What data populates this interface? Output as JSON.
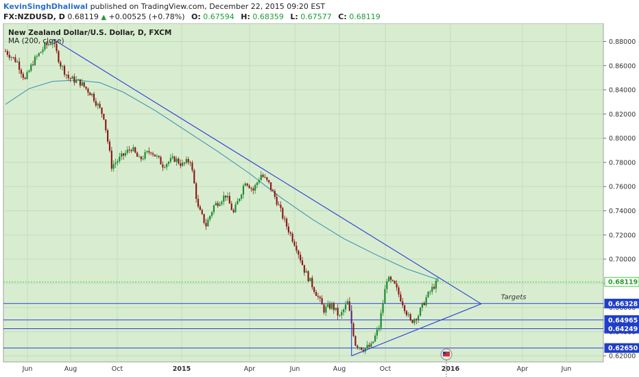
{
  "header": {
    "author": "KevinSinghDhaliwal",
    "published": " published on TradingView.com, December 22, 2015 09:20 EST",
    "symbol": "FX:NZDUSD, D",
    "last": "0.68119",
    "change": "+0.00525 (+0.78%)",
    "open_label": "O:",
    "open": "0.67594",
    "high_label": "H:",
    "high": "0.68359",
    "low_label": "L:",
    "low": "0.67577",
    "close_label": "C:",
    "close": "0.68119"
  },
  "legend": {
    "title": "New Zealand Dollar/U.S. Dollar, D, FXCM",
    "indicator": "MA (200, close)"
  },
  "colors": {
    "background": "#d8edd0",
    "axis_bg": "#ffffff",
    "up": "#1e8a2e",
    "down": "#8b1a1a",
    "trendline": "#2b3fd6",
    "ma": "#4a9bb5",
    "price_line": "#3ecf3e",
    "label_fill": "#1f3fc8"
  },
  "chart_data": {
    "type": "candlestick",
    "title": "New Zealand Dollar/U.S. Dollar, D, FXCM",
    "ylim": [
      0.615,
      0.895
    ],
    "y_ticks": [
      "0.88000",
      "0.86000",
      "0.84000",
      "0.82000",
      "0.80000",
      "0.78000",
      "0.76000",
      "0.74000",
      "0.72000",
      "0.70000",
      "0.68000",
      "0.66000",
      "0.64000",
      "0.62000"
    ],
    "x_ticks": [
      "Jun",
      "Aug",
      "Oct",
      "2015",
      "Apr",
      "Jun",
      "Aug",
      "Oct",
      "2016",
      "Apr",
      "Jun"
    ],
    "bold_x_ticks": [
      "2015",
      "2016"
    ],
    "grid": true,
    "price_path": [
      {
        "t": 0,
        "p": 0.872
      },
      {
        "t": 3,
        "p": 0.863
      },
      {
        "t": 5,
        "p": 0.848
      },
      {
        "t": 7,
        "p": 0.863
      },
      {
        "t": 10,
        "p": 0.876
      },
      {
        "t": 12,
        "p": 0.88
      },
      {
        "t": 14,
        "p": 0.861
      },
      {
        "t": 16,
        "p": 0.85
      },
      {
        "t": 19,
        "p": 0.846
      },
      {
        "t": 22,
        "p": 0.836
      },
      {
        "t": 25,
        "p": 0.818
      },
      {
        "t": 27,
        "p": 0.777
      },
      {
        "t": 29,
        "p": 0.783
      },
      {
        "t": 32,
        "p": 0.792
      },
      {
        "t": 34,
        "p": 0.782
      },
      {
        "t": 37,
        "p": 0.79
      },
      {
        "t": 40,
        "p": 0.778
      },
      {
        "t": 43,
        "p": 0.783
      },
      {
        "t": 45,
        "p": 0.778
      },
      {
        "t": 47,
        "p": 0.782
      },
      {
        "t": 49,
        "p": 0.742
      },
      {
        "t": 51,
        "p": 0.728
      },
      {
        "t": 53,
        "p": 0.744
      },
      {
        "t": 56,
        "p": 0.753
      },
      {
        "t": 58,
        "p": 0.738
      },
      {
        "t": 61,
        "p": 0.765
      },
      {
        "t": 63,
        "p": 0.757
      },
      {
        "t": 65,
        "p": 0.77
      },
      {
        "t": 67,
        "p": 0.762
      },
      {
        "t": 69,
        "p": 0.748
      },
      {
        "t": 71,
        "p": 0.731
      },
      {
        "t": 74,
        "p": 0.71
      },
      {
        "t": 76,
        "p": 0.691
      },
      {
        "t": 79,
        "p": 0.672
      },
      {
        "t": 81,
        "p": 0.658
      },
      {
        "t": 83,
        "p": 0.662
      },
      {
        "t": 85,
        "p": 0.652
      },
      {
        "t": 87,
        "p": 0.664
      },
      {
        "t": 89,
        "p": 0.63
      },
      {
        "t": 91,
        "p": 0.626
      },
      {
        "t": 93,
        "p": 0.628
      },
      {
        "t": 95,
        "p": 0.644
      },
      {
        "t": 97,
        "p": 0.684
      },
      {
        "t": 99,
        "p": 0.678
      },
      {
        "t": 101,
        "p": 0.664
      },
      {
        "t": 103,
        "p": 0.648
      },
      {
        "t": 105,
        "p": 0.654
      },
      {
        "t": 107,
        "p": 0.668
      },
      {
        "t": 109,
        "p": 0.678
      },
      {
        "t": 110,
        "p": 0.6812
      }
    ],
    "ma_path": [
      {
        "t": 0,
        "p": 0.828
      },
      {
        "t": 6,
        "p": 0.841
      },
      {
        "t": 12,
        "p": 0.847
      },
      {
        "t": 18,
        "p": 0.848
      },
      {
        "t": 24,
        "p": 0.846
      },
      {
        "t": 30,
        "p": 0.838
      },
      {
        "t": 38,
        "p": 0.823
      },
      {
        "t": 46,
        "p": 0.806
      },
      {
        "t": 54,
        "p": 0.789
      },
      {
        "t": 62,
        "p": 0.771
      },
      {
        "t": 70,
        "p": 0.751
      },
      {
        "t": 78,
        "p": 0.733
      },
      {
        "t": 86,
        "p": 0.717
      },
      {
        "t": 94,
        "p": 0.704
      },
      {
        "t": 102,
        "p": 0.692
      },
      {
        "t": 110,
        "p": 0.683
      }
    ],
    "drawings": {
      "upper_trendline": [
        {
          "t": 12,
          "p": 0.882
        },
        {
          "t": 121,
          "p": 0.663
        }
      ],
      "lower_trendline": [
        {
          "t": 88,
          "p": 0.62
        },
        {
          "t": 121,
          "p": 0.663
        }
      ],
      "left_vertical": [
        {
          "t": 88,
          "p": 0.662
        },
        {
          "t": 88,
          "p": 0.62
        }
      ],
      "horizontal_levels": [
        0.6633,
        0.6497,
        0.6425,
        0.6265
      ],
      "targets_label": "Targets",
      "targets_anchor": {
        "t": 126,
        "p": 0.667
      }
    },
    "last_price": 0.68119,
    "price_labels": [
      {
        "value": 0.68119,
        "text": "0.68119",
        "style": "last"
      },
      {
        "value": 0.66328,
        "text": "0.66328",
        "style": "level"
      },
      {
        "value": 0.64965,
        "text": "0.64965",
        "style": "level"
      },
      {
        "value": 0.64249,
        "text": "0.64249",
        "style": "level"
      },
      {
        "value": 0.6265,
        "text": "0.62650",
        "style": "level"
      }
    ]
  }
}
